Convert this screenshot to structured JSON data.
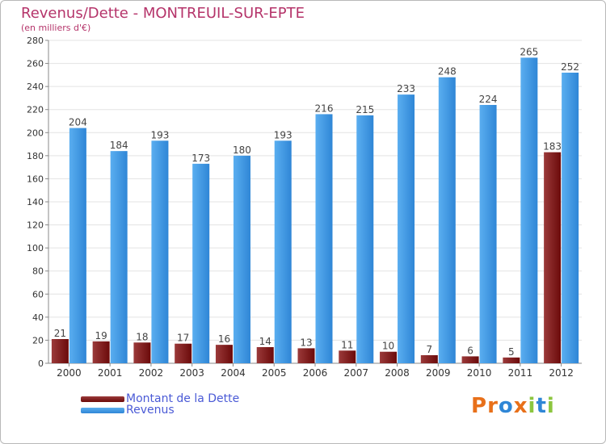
{
  "title": "Revenus/Dette - MONTREUIL-SUR-EPTE",
  "subtitle": "(en milliers d'€)",
  "logo_text": "Proxiti",
  "colors": {
    "dette": "#6b0a0a",
    "dette_light": "#9b3a3a",
    "revenus": "#2f86d6",
    "revenus_light": "#5aaef0",
    "title": "#b5346a",
    "legend_text": "#4a5ad6",
    "grid": "#e3e3e3",
    "logo": [
      "#e8701a",
      "#e8701a",
      "#2f86d6",
      "#e8701a",
      "#8cc63f",
      "#2f86d6",
      "#8cc63f"
    ]
  },
  "chart_data": {
    "type": "bar",
    "categories": [
      "2000",
      "2001",
      "2002",
      "2003",
      "2004",
      "2005",
      "2006",
      "2007",
      "2008",
      "2009",
      "2010",
      "2011",
      "2012"
    ],
    "series": [
      {
        "name": "Montant de la Dette",
        "values": [
          21,
          19,
          18,
          17,
          16,
          14,
          13,
          11,
          10,
          7,
          6,
          5,
          183
        ]
      },
      {
        "name": "Revenus",
        "values": [
          204,
          184,
          193,
          173,
          180,
          193,
          216,
          215,
          233,
          248,
          224,
          265,
          252
        ]
      }
    ],
    "ylim": [
      0,
      280
    ],
    "yticks": [
      0,
      20,
      40,
      60,
      80,
      100,
      120,
      140,
      160,
      180,
      200,
      220,
      240,
      260,
      280
    ],
    "grid": true,
    "legend_position": "bottom-left"
  }
}
